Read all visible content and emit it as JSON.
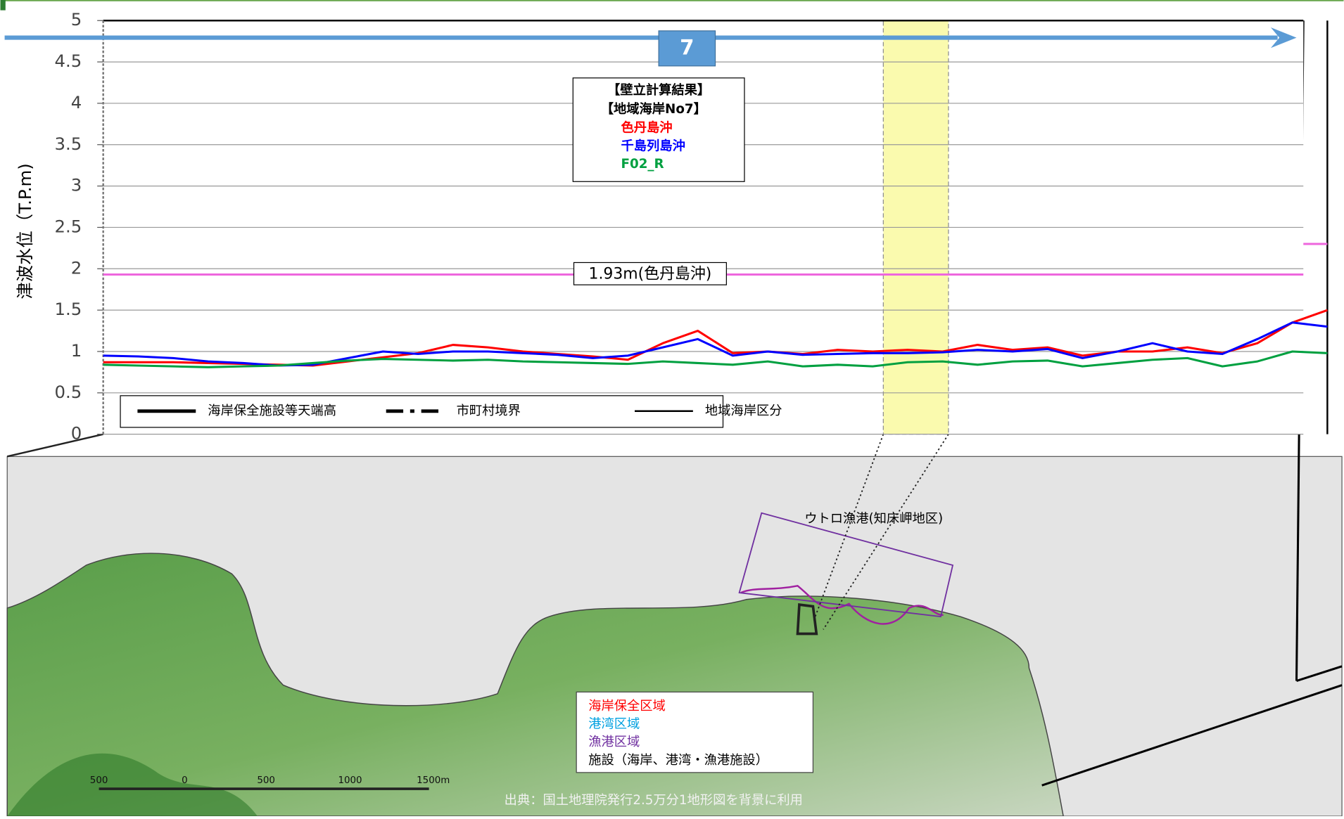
{
  "chart_data": {
    "type": "line",
    "y_axis_label": "津波水位（T.P.m)",
    "ylim": [
      0,
      5
    ],
    "yticks": [
      0,
      0.5,
      1,
      1.5,
      2,
      2.5,
      3,
      3.5,
      4,
      4.5,
      5
    ],
    "grid": true,
    "region_label": "7",
    "legend_title": [
      "【壁立計算結果】",
      "【地域海岸No7】"
    ],
    "series": [
      {
        "name": "色丹島沖",
        "color": "#ff0000",
        "values": [
          0.87,
          0.87,
          0.87,
          0.86,
          0.85,
          0.84,
          0.83,
          0.88,
          0.93,
          0.98,
          1.08,
          1.05,
          1.0,
          0.97,
          0.94,
          0.9,
          1.1,
          1.25,
          0.98,
          1.0,
          0.97,
          1.02,
          1.0,
          1.02,
          1.0,
          1.08,
          1.02,
          1.05,
          0.95,
          1.0,
          1.0,
          1.05,
          0.98,
          1.1,
          1.35,
          1.5
        ]
      },
      {
        "name": "千島列島沖",
        "color": "#0000ff",
        "values": [
          0.95,
          0.94,
          0.92,
          0.88,
          0.86,
          0.83,
          0.84,
          0.92,
          1.0,
          0.97,
          1.0,
          1.0,
          0.98,
          0.96,
          0.92,
          0.95,
          1.05,
          1.15,
          0.95,
          1.0,
          0.96,
          0.97,
          0.98,
          0.98,
          0.99,
          1.02,
          1.0,
          1.03,
          0.92,
          1.0,
          1.1,
          1.0,
          0.97,
          1.15,
          1.35,
          1.3
        ]
      },
      {
        "name": "F02_R",
        "color": "#00a040",
        "values": [
          0.84,
          0.83,
          0.82,
          0.81,
          0.82,
          0.83,
          0.86,
          0.89,
          0.91,
          0.9,
          0.89,
          0.9,
          0.88,
          0.87,
          0.86,
          0.85,
          0.88,
          0.86,
          0.84,
          0.88,
          0.82,
          0.84,
          0.82,
          0.87,
          0.88,
          0.84,
          0.88,
          0.89,
          0.82,
          0.86,
          0.9,
          0.92,
          0.82,
          0.88,
          1.0,
          0.98
        ]
      }
    ],
    "reference_lines": [
      {
        "value": 1.93,
        "label": "1.93m(色丹島沖)",
        "color": "#ee66dd"
      },
      {
        "value": 2.3,
        "color": "#ee66dd"
      }
    ],
    "line_legend": [
      "海岸保全施設等天端高",
      "市町村境界",
      "地域海岸区分"
    ]
  },
  "map": {
    "harbor_label": "ウトロ漁港(知床岬地区)",
    "legend": [
      {
        "text": "海岸保全区域",
        "color": "#ff0000"
      },
      {
        "text": "港湾区域",
        "color": "#00a0e0"
      },
      {
        "text": "漁港区域",
        "color": "#7030a0"
      },
      {
        "text": "施設（海岸、港湾・漁港施設）",
        "color": "#000000"
      }
    ],
    "scale_labels": [
      "500",
      "0",
      "500",
      "1000",
      "1500m"
    ],
    "source": "出典：国土地理院発行2.5万分1地形図を背景に利用"
  }
}
